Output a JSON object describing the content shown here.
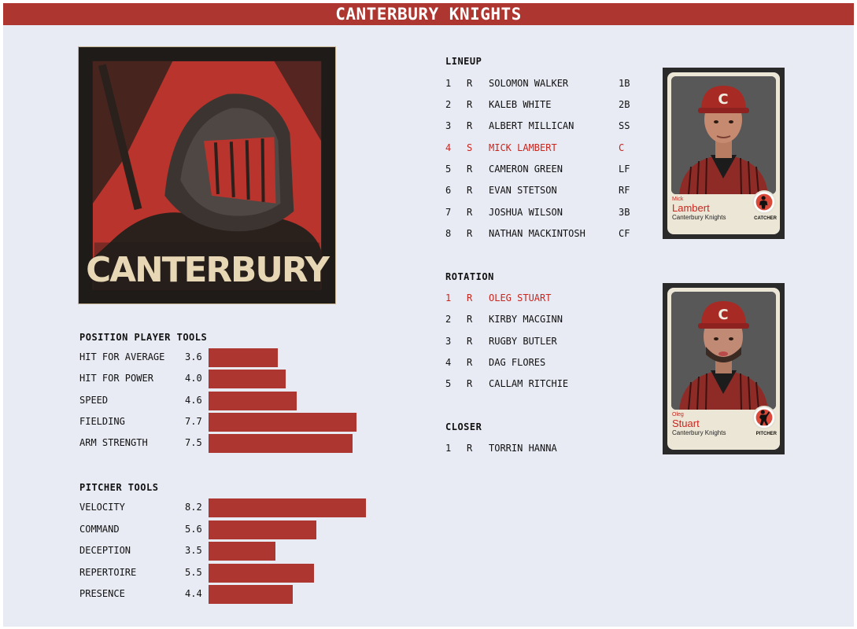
{
  "header": {
    "title": "CANTERBURY KNIGHTS"
  },
  "logo": {
    "text": "CANTERBURY",
    "icon": "knight-helmet-icon"
  },
  "position_tools": {
    "title": "POSITION PLAYER TOOLS",
    "items": [
      {
        "label": "HIT FOR AVERAGE",
        "value": "3.6"
      },
      {
        "label": "HIT FOR POWER",
        "value": "4.0"
      },
      {
        "label": "SPEED",
        "value": "4.6"
      },
      {
        "label": "FIELDING",
        "value": "7.7"
      },
      {
        "label": "ARM STRENGTH",
        "value": "7.5"
      }
    ]
  },
  "pitcher_tools": {
    "title": "PITCHER TOOLS",
    "items": [
      {
        "label": "VELOCITY",
        "value": "8.2"
      },
      {
        "label": "COMMAND",
        "value": "5.6"
      },
      {
        "label": "DECEPTION",
        "value": "3.5"
      },
      {
        "label": "REPERTOIRE",
        "value": "5.5"
      },
      {
        "label": "PRESENCE",
        "value": "4.4"
      }
    ]
  },
  "lineup": {
    "title": "LINEUP",
    "rows": [
      {
        "num": "1",
        "hand": "R",
        "name": "SOLOMON WALKER",
        "pos": "1B"
      },
      {
        "num": "2",
        "hand": "R",
        "name": "KALEB WHITE",
        "pos": "2B"
      },
      {
        "num": "3",
        "hand": "R",
        "name": "ALBERT MILLICAN",
        "pos": "SS"
      },
      {
        "num": "4",
        "hand": "S",
        "name": "MICK LAMBERT",
        "pos": "C",
        "highlight": true
      },
      {
        "num": "5",
        "hand": "R",
        "name": "CAMERON GREEN",
        "pos": "LF"
      },
      {
        "num": "6",
        "hand": "R",
        "name": "EVAN STETSON",
        "pos": "RF"
      },
      {
        "num": "7",
        "hand": "R",
        "name": "JOSHUA WILSON",
        "pos": "3B"
      },
      {
        "num": "8",
        "hand": "R",
        "name": "NATHAN MACKINTOSH",
        "pos": "CF"
      }
    ]
  },
  "rotation": {
    "title": "ROTATION",
    "rows": [
      {
        "num": "1",
        "hand": "R",
        "name": "OLEG STUART",
        "highlight": true
      },
      {
        "num": "2",
        "hand": "R",
        "name": "KIRBY MACGINN"
      },
      {
        "num": "3",
        "hand": "R",
        "name": "RUGBY BUTLER"
      },
      {
        "num": "4",
        "hand": "R",
        "name": "DAG FLORES"
      },
      {
        "num": "5",
        "hand": "R",
        "name": "CALLAM RITCHIE"
      }
    ]
  },
  "closer": {
    "title": "CLOSER",
    "rows": [
      {
        "num": "1",
        "hand": "R",
        "name": "TORRIN HANNA"
      }
    ]
  },
  "cards": [
    {
      "first": "Mick",
      "last": "Lambert",
      "team": "Canterbury Knights",
      "position": "CATCHER",
      "cap_letter": "C"
    },
    {
      "first": "Oleg",
      "last": "Stuart",
      "team": "Canterbury Knights",
      "position": "PITCHER",
      "cap_letter": "C"
    }
  ],
  "colors": {
    "accent": "#ad3630",
    "highlight": "#c8261e",
    "background": "#e8ebf4"
  }
}
